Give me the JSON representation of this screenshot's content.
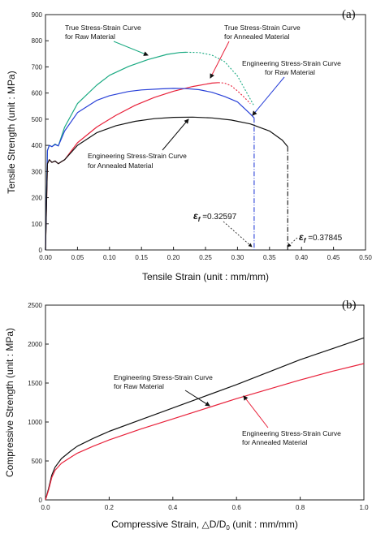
{
  "chart_data": [
    {
      "type": "line",
      "panel_label": "(a)",
      "xlabel": "Tensile Strain (unit : mm/mm)",
      "ylabel": "Tensile Strength (unit : MPa)",
      "xlim": [
        0,
        0.5
      ],
      "ylim": [
        0,
        900
      ],
      "xticks": [
        "0.00",
        "0.05",
        "0.10",
        "0.15",
        "0.20",
        "0.25",
        "0.30",
        "0.35",
        "0.40",
        "0.45",
        "0.50"
      ],
      "yticks": [
        "0",
        "100",
        "200",
        "300",
        "400",
        "500",
        "600",
        "700",
        "800",
        "900"
      ],
      "grid": false,
      "series": [
        {
          "name": "True Stress-Strain Curve for Raw Material",
          "color": "#1aaa82",
          "x": [
            0.0,
            0.003,
            0.006,
            0.01,
            0.015,
            0.02,
            0.03,
            0.05,
            0.08,
            0.1,
            0.13,
            0.16,
            0.19,
            0.21,
            0.22
          ],
          "y": [
            0,
            380,
            400,
            395,
            405,
            398,
            470,
            560,
            630,
            668,
            702,
            728,
            748,
            755,
            756
          ],
          "dashed_x": [
            0.22,
            0.24,
            0.26,
            0.28,
            0.3,
            0.325
          ],
          "dashed_y": [
            756,
            755,
            745,
            720,
            665,
            555
          ]
        },
        {
          "name": "True Stress-Strain Curve for Annealed Material",
          "color": "#e8213a",
          "x": [
            0.0,
            0.003,
            0.006,
            0.01,
            0.015,
            0.02,
            0.025,
            0.03,
            0.05,
            0.08,
            0.11,
            0.14,
            0.17,
            0.2,
            0.23,
            0.26,
            0.27
          ],
          "y": [
            0,
            330,
            345,
            335,
            340,
            330,
            338,
            345,
            410,
            470,
            515,
            553,
            583,
            607,
            625,
            638,
            640
          ],
          "dashed_x": [
            0.27,
            0.28,
            0.29,
            0.3,
            0.31,
            0.32
          ],
          "dashed_y": [
            640,
            638,
            628,
            608,
            585,
            560
          ]
        },
        {
          "name": "Engineering Stress-Strain Curve for Raw Material",
          "color": "#2840d8",
          "x": [
            0.0,
            0.003,
            0.006,
            0.01,
            0.015,
            0.02,
            0.03,
            0.05,
            0.08,
            0.1,
            0.13,
            0.15,
            0.18,
            0.2,
            0.22,
            0.24,
            0.26,
            0.28,
            0.3,
            0.32,
            0.32597
          ],
          "y": [
            0,
            380,
            400,
            395,
            403,
            398,
            455,
            525,
            572,
            590,
            606,
            612,
            616,
            618,
            617,
            613,
            603,
            587,
            566,
            520,
            505
          ],
          "dashed_x": [
            0.32597,
            0.32597
          ],
          "dashed_y": [
            505,
            0
          ]
        },
        {
          "name": "Engineering Stress-Strain Curve for Annealed Material",
          "color": "#111111",
          "x": [
            0.0,
            0.003,
            0.006,
            0.01,
            0.015,
            0.02,
            0.025,
            0.03,
            0.05,
            0.08,
            0.11,
            0.14,
            0.17,
            0.2,
            0.23,
            0.26,
            0.29,
            0.32,
            0.35,
            0.37,
            0.37845
          ],
          "y": [
            0,
            330,
            345,
            335,
            340,
            330,
            338,
            345,
            400,
            448,
            475,
            492,
            502,
            507,
            508,
            505,
            497,
            482,
            455,
            420,
            395
          ],
          "dashed_x": [
            0.37845,
            0.37845
          ],
          "dashed_y": [
            395,
            0
          ]
        }
      ],
      "annotations": [
        {
          "text_lines": [
            "True Stress-Strain Curve",
            "for Raw Material"
          ],
          "series": 0
        },
        {
          "text_lines": [
            "True Stress-Strain Curve",
            "for Annealed Material"
          ],
          "series": 1
        },
        {
          "text_lines": [
            "Engineering Stress-Strain Curve",
            "for Raw Material"
          ],
          "series": 2
        },
        {
          "text_lines": [
            "Engineering Stress-Strain Curve",
            "for Annealed Material"
          ],
          "series": 3
        }
      ],
      "fracture_labels": [
        {
          "symbol": "ε",
          "subscript": "f",
          "value_text": " =0.32597",
          "x": 0.32597
        },
        {
          "symbol": "ε",
          "subscript": "f",
          "value_text": " =0.37845",
          "x": 0.37845
        }
      ]
    },
    {
      "type": "line",
      "panel_label": "(b)",
      "xlabel_parts": [
        "Compressive Strain, △D/D",
        "0",
        " (unit : mm/mm)"
      ],
      "ylabel": "Compressive Strength (unit : MPa)",
      "xlim": [
        0,
        1.0
      ],
      "ylim": [
        0,
        2500
      ],
      "xticks": [
        "0.0",
        "0.2",
        "0.4",
        "0.6",
        "0.8",
        "1.0"
      ],
      "yticks": [
        "0",
        "500",
        "1000",
        "1500",
        "2000",
        "2500"
      ],
      "grid": false,
      "series": [
        {
          "name": "Engineering Stress-Strain Curve for Raw Material",
          "color": "#111111",
          "x": [
            0.0,
            0.01,
            0.02,
            0.03,
            0.05,
            0.08,
            0.1,
            0.15,
            0.2,
            0.3,
            0.4,
            0.5,
            0.6,
            0.7,
            0.8,
            0.9,
            1.0
          ],
          "y": [
            0,
            150,
            320,
            420,
            530,
            630,
            690,
            790,
            880,
            1030,
            1180,
            1330,
            1480,
            1640,
            1800,
            1940,
            2080
          ]
        },
        {
          "name": "Engineering Stress-Strain Curve for Annealed Material",
          "color": "#e8213a",
          "x": [
            0.0,
            0.01,
            0.02,
            0.03,
            0.05,
            0.08,
            0.1,
            0.15,
            0.2,
            0.3,
            0.4,
            0.5,
            0.6,
            0.7,
            0.8,
            0.9,
            1.0
          ],
          "y": [
            0,
            130,
            290,
            380,
            470,
            550,
            600,
            690,
            770,
            910,
            1040,
            1170,
            1300,
            1420,
            1540,
            1650,
            1750
          ]
        }
      ],
      "annotations": [
        {
          "text_lines": [
            "Engineering Stress-Strain Curve",
            "for Raw Material"
          ],
          "series": 0
        },
        {
          "text_lines": [
            "Engineering Stress-Strain Curve",
            "for Annealed Material"
          ],
          "series": 1
        }
      ]
    }
  ]
}
